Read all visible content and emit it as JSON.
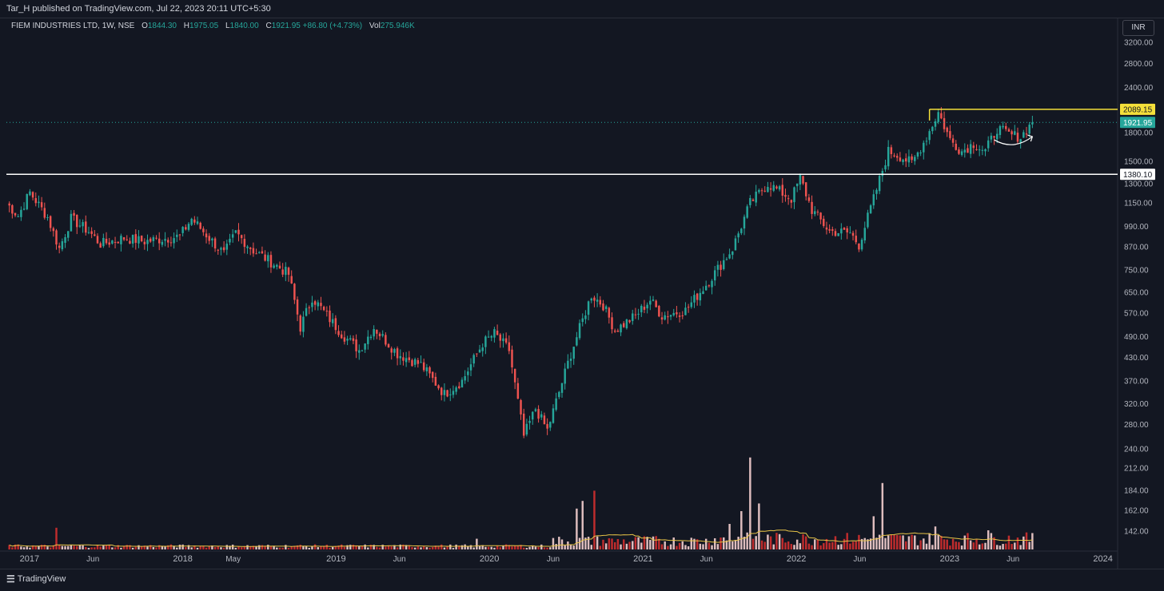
{
  "header": {
    "published": "Tar_H published on TradingView.com, Jul 22, 2023 20:11 UTC+5:30"
  },
  "legend": {
    "symbol": "FIEM INDUSTRIES LTD, 1W, NSE",
    "o_label": "O",
    "o_value": "1844.30",
    "h_label": "H",
    "h_value": "1975.05",
    "l_label": "L",
    "l_value": "1840.00",
    "c_label": "C",
    "c_value": "1921.95",
    "change": "+86.80 (+4.73%)",
    "vol_label": "Vol",
    "vol_value": "275.946K"
  },
  "currency_button": "INR",
  "footer": {
    "brand": "TradingView",
    "brand_icon": "tradingview-logo-icon"
  },
  "colors": {
    "background": "#131722",
    "up": "#26a69a",
    "down": "#ef5350",
    "volume_up": "#f5cfcf",
    "volume_down": "#d32f2f",
    "volume_ma": "#e8c547",
    "resistance": "#f5e03a",
    "support": "#ffffff",
    "last_price": "#26a69a"
  },
  "chart_data": {
    "type": "candlestick",
    "title": "",
    "scale": "log",
    "ylim": [
      125,
      3600
    ],
    "y_ticks": [
      "3200.00",
      "2800.00",
      "2400.00",
      "1800.00",
      "1500.00",
      "1300.00",
      "1150.00",
      "990.00",
      "870.00",
      "750.00",
      "650.00",
      "570.00",
      "490.00",
      "430.00",
      "370.00",
      "320.00",
      "280.00",
      "240.00",
      "212.00",
      "184.00",
      "162.00",
      "142.00"
    ],
    "x_ticks": [
      "2017",
      "Jun",
      "2018",
      "May",
      "2019",
      "Jun",
      "2020",
      "Jun",
      "2021",
      "Jun",
      "2022",
      "Jun",
      "2023",
      "Jun",
      "2024"
    ],
    "x_tick_dates": [
      "2017-01",
      "2017-06",
      "2018-01",
      "2018-05",
      "2019-01",
      "2019-06",
      "2020-01",
      "2020-06",
      "2021-01",
      "2021-06",
      "2022-01",
      "2022-06",
      "2023-01",
      "2023-06",
      "2024-01"
    ],
    "x_range": [
      "2016-11-07",
      "2024-02-05"
    ],
    "levels": [
      {
        "label": "2089.15",
        "value": 2089.15,
        "color": "#f5e03a",
        "start": "2022-11-14"
      },
      {
        "label": "1380.10",
        "value": 1380.1,
        "color": "#ffffff",
        "start": "2016-11-07"
      }
    ],
    "last_price": {
      "label": "1921.95",
      "value": 1921.95
    },
    "anchors": [
      {
        "date": "2016-11-07",
        "close": 1150
      },
      {
        "date": "2016-12-05",
        "close": 1060
      },
      {
        "date": "2017-01-02",
        "close": 1230
      },
      {
        "date": "2017-02-13",
        "close": 1050
      },
      {
        "date": "2017-03-13",
        "close": 860
      },
      {
        "date": "2017-04-10",
        "close": 1040
      },
      {
        "date": "2017-05-22",
        "close": 960
      },
      {
        "date": "2017-06-19",
        "close": 885
      },
      {
        "date": "2017-08-14",
        "close": 920
      },
      {
        "date": "2017-10-02",
        "close": 900
      },
      {
        "date": "2017-12-25",
        "close": 930
      },
      {
        "date": "2018-01-22",
        "close": 1040
      },
      {
        "date": "2018-03-05",
        "close": 920
      },
      {
        "date": "2018-04-09",
        "close": 830
      },
      {
        "date": "2018-05-07",
        "close": 950
      },
      {
        "date": "2018-06-18",
        "close": 850
      },
      {
        "date": "2018-08-13",
        "close": 770
      },
      {
        "date": "2018-09-10",
        "close": 730
      },
      {
        "date": "2018-10-08",
        "close": 520
      },
      {
        "date": "2018-11-05",
        "close": 630
      },
      {
        "date": "2019-01-14",
        "close": 500
      },
      {
        "date": "2019-02-25",
        "close": 450
      },
      {
        "date": "2019-04-01",
        "close": 520
      },
      {
        "date": "2019-05-27",
        "close": 440
      },
      {
        "date": "2019-07-22",
        "close": 410
      },
      {
        "date": "2019-09-16",
        "close": 340
      },
      {
        "date": "2019-10-28",
        "close": 370
      },
      {
        "date": "2019-12-16",
        "close": 470
      },
      {
        "date": "2020-01-13",
        "close": 500
      },
      {
        "date": "2020-02-17",
        "close": 450
      },
      {
        "date": "2020-03-23",
        "close": 260
      },
      {
        "date": "2020-04-20",
        "close": 310
      },
      {
        "date": "2020-05-18",
        "close": 270
      },
      {
        "date": "2020-07-13",
        "close": 440
      },
      {
        "date": "2020-08-31",
        "close": 640
      },
      {
        "date": "2020-09-28",
        "close": 600
      },
      {
        "date": "2020-10-26",
        "close": 510
      },
      {
        "date": "2020-12-14",
        "close": 560
      },
      {
        "date": "2021-01-18",
        "close": 620
      },
      {
        "date": "2021-02-15",
        "close": 560
      },
      {
        "date": "2021-04-12",
        "close": 580
      },
      {
        "date": "2021-06-07",
        "close": 700
      },
      {
        "date": "2021-08-02",
        "close": 860
      },
      {
        "date": "2021-09-13",
        "close": 1150
      },
      {
        "date": "2021-10-25",
        "close": 1300
      },
      {
        "date": "2021-12-20",
        "close": 1180
      },
      {
        "date": "2022-01-10",
        "close": 1350
      },
      {
        "date": "2022-02-07",
        "close": 1100
      },
      {
        "date": "2022-03-21",
        "close": 960
      },
      {
        "date": "2022-05-09",
        "close": 950
      },
      {
        "date": "2022-05-30",
        "close": 880
      },
      {
        "date": "2022-07-04",
        "close": 1180
      },
      {
        "date": "2022-08-08",
        "close": 1600
      },
      {
        "date": "2022-09-05",
        "close": 1550
      },
      {
        "date": "2022-10-03",
        "close": 1480
      },
      {
        "date": "2022-11-07",
        "close": 1750
      },
      {
        "date": "2022-12-05",
        "close": 2050
      },
      {
        "date": "2023-01-02",
        "close": 1720
      },
      {
        "date": "2023-01-30",
        "close": 1600
      },
      {
        "date": "2023-02-27",
        "close": 1680
      },
      {
        "date": "2023-03-27",
        "close": 1600
      },
      {
        "date": "2023-04-24",
        "close": 1850
      },
      {
        "date": "2023-05-22",
        "close": 1780
      },
      {
        "date": "2023-06-19",
        "close": 1750
      },
      {
        "date": "2023-07-17",
        "close": 1921.95
      }
    ],
    "volume": {
      "ylim_k": [
        0,
        5000
      ],
      "spikes_k": [
        {
          "date": "2017-03-06",
          "volume": 850
        },
        {
          "date": "2019-12-02",
          "volume": 420
        },
        {
          "date": "2020-07-27",
          "volume": 1600
        },
        {
          "date": "2020-08-10",
          "volume": 1900
        },
        {
          "date": "2020-09-07",
          "volume": 2300
        },
        {
          "date": "2021-07-26",
          "volume": 1000
        },
        {
          "date": "2021-08-23",
          "volume": 1500
        },
        {
          "date": "2021-09-13",
          "volume": 3600
        },
        {
          "date": "2021-10-04",
          "volume": 1800
        },
        {
          "date": "2022-07-04",
          "volume": 1300
        },
        {
          "date": "2022-07-25",
          "volume": 2600
        },
        {
          "date": "2022-11-28",
          "volume": 900
        },
        {
          "date": "2023-04-03",
          "volume": 750
        }
      ],
      "ma_label": ""
    }
  }
}
